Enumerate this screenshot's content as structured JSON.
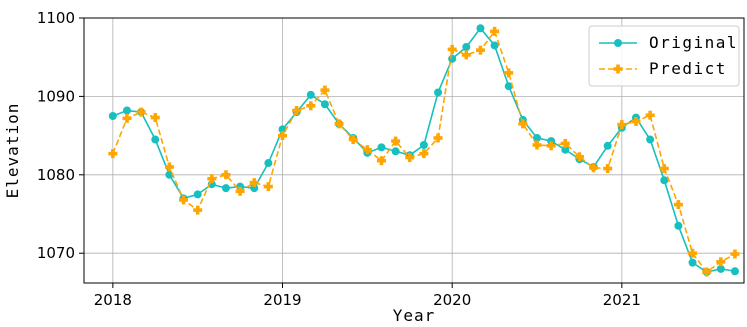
{
  "chart_data": {
    "type": "line",
    "xlabel": "Year",
    "ylabel": "Elevation",
    "xlim": [
      2017.83,
      2021.72
    ],
    "ylim": [
      1066.2,
      1100
    ],
    "x_ticks": [
      2018,
      2019,
      2020,
      2021
    ],
    "y_ticks": [
      1070,
      1080,
      1090,
      1100
    ],
    "grid": true,
    "legend_position": "top-right",
    "x": [
      2018.0,
      2018.0833,
      2018.1667,
      2018.25,
      2018.3333,
      2018.4167,
      2018.5,
      2018.5833,
      2018.6667,
      2018.75,
      2018.8333,
      2018.9167,
      2019.0,
      2019.0833,
      2019.1667,
      2019.25,
      2019.3333,
      2019.4167,
      2019.5,
      2019.5833,
      2019.6667,
      2019.75,
      2019.8333,
      2019.9167,
      2020.0,
      2020.0833,
      2020.1667,
      2020.25,
      2020.3333,
      2020.4167,
      2020.5,
      2020.5833,
      2020.6667,
      2020.75,
      2020.8333,
      2020.9167,
      2021.0,
      2021.0833,
      2021.1667,
      2021.25,
      2021.3333,
      2021.4167,
      2021.5,
      2021.5833,
      2021.6667
    ],
    "series": [
      {
        "name": "Original",
        "color": "#17bfbf",
        "style": "solid",
        "marker": "circle",
        "values": [
          1087.5,
          1088.2,
          1088.0,
          1084.5,
          1080.0,
          1077.0,
          1077.5,
          1078.8,
          1078.3,
          1078.5,
          1078.3,
          1081.5,
          1085.8,
          1088.0,
          1090.2,
          1089.0,
          1086.5,
          1084.7,
          1082.8,
          1083.5,
          1083.0,
          1082.5,
          1083.8,
          1090.5,
          1094.8,
          1096.3,
          1098.7,
          1096.5,
          1091.3,
          1087.0,
          1084.7,
          1084.3,
          1083.2,
          1082.0,
          1081.0,
          1083.7,
          1086.0,
          1087.3,
          1084.5,
          1079.3,
          1073.5,
          1068.8,
          1067.6,
          1068.0,
          1067.7
        ]
      },
      {
        "name": "Predict",
        "color": "#ffa500",
        "style": "dashed",
        "marker": "plus",
        "values": [
          1082.7,
          1087.2,
          1088.0,
          1087.3,
          1081.0,
          1076.8,
          1075.5,
          1079.5,
          1080.0,
          1077.9,
          1079.0,
          1078.5,
          1085.0,
          1088.2,
          1088.8,
          1090.8,
          1086.5,
          1084.5,
          1083.2,
          1081.8,
          1084.3,
          1082.2,
          1082.7,
          1084.7,
          1096.0,
          1095.3,
          1095.9,
          1098.3,
          1093.0,
          1086.5,
          1083.8,
          1083.7,
          1084.0,
          1082.3,
          1080.9,
          1080.8,
          1086.4,
          1086.8,
          1087.6,
          1080.8,
          1076.2,
          1070.0,
          1067.6,
          1068.9,
          1069.9
        ]
      }
    ]
  }
}
